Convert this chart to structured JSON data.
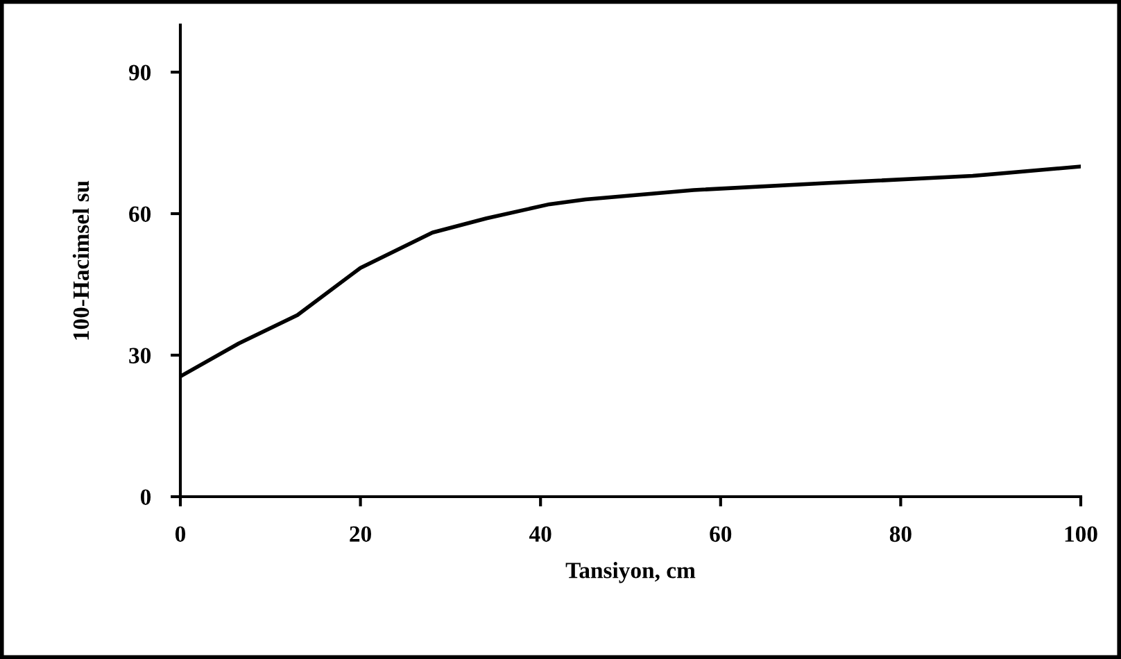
{
  "chart_data": {
    "type": "line",
    "xlabel": "Tansiyon, cm",
    "ylabel": "100-Hacimsel su",
    "x": [
      0,
      6.5,
      13,
      20,
      28,
      34,
      41,
      45,
      57,
      72,
      88,
      100
    ],
    "series": [
      {
        "color": "#000000",
        "values": [
          25.5,
          32.5,
          38.5,
          48.5,
          56,
          59,
          62,
          63,
          65,
          66.5,
          68,
          70
        ]
      }
    ],
    "xlim": [
      0,
      100
    ],
    "xticks": [
      0,
      20,
      40,
      60,
      80,
      100
    ],
    "ylim": [
      0,
      100
    ],
    "yticks": [
      0,
      30,
      60,
      90
    ],
    "grid": false,
    "legend": false,
    "marker": "none",
    "line_style": "solid"
  }
}
